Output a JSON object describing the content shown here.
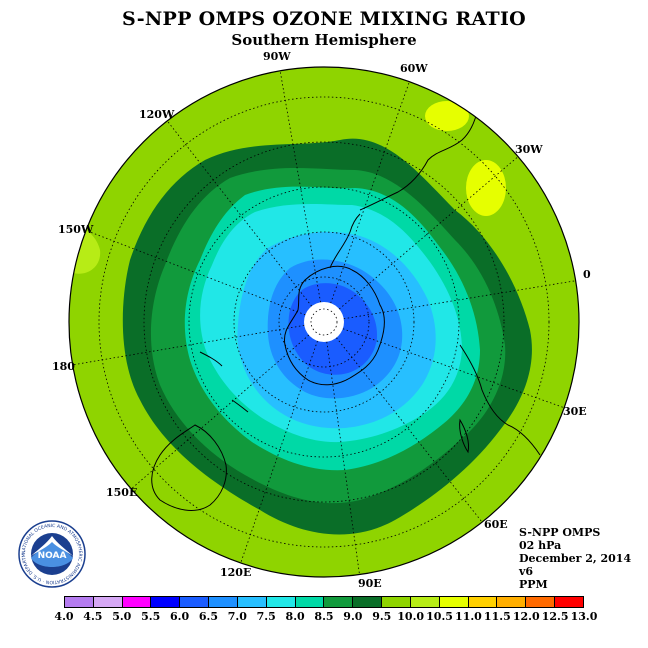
{
  "header": {
    "title": "S-NPP OMPS OZONE MIXING RATIO",
    "subtitle": "Southern Hemisphere"
  },
  "map": {
    "projection": "south polar stereographic",
    "longitude_labels": [
      "90W",
      "60W",
      "30W",
      "0",
      "30E",
      "60E",
      "90E",
      "120E",
      "150E",
      "180",
      "150W",
      "120W"
    ]
  },
  "info": {
    "product": "S-NPP OMPS",
    "level": "02 hPa",
    "date": "December 2, 2014",
    "version": "v6",
    "units": "PPM"
  },
  "colorbar": {
    "ticks": [
      "4.0",
      "4.5",
      "5.0",
      "5.5",
      "6.0",
      "6.5",
      "7.0",
      "7.5",
      "8.0",
      "8.5",
      "9.0",
      "9.5",
      "10.0",
      "10.5",
      "11.0",
      "11.5",
      "12.0",
      "12.5",
      "13.0"
    ],
    "colors": [
      "#b57cf0",
      "#d6a8f5",
      "#ff00ff",
      "#0000ff",
      "#1a5cff",
      "#1e90ff",
      "#27bfff",
      "#21e7e7",
      "#00d9a6",
      "#119a3c",
      "#0a6e28",
      "#8fd400",
      "#b7ec16",
      "#e6ff00",
      "#ffd000",
      "#ffae00",
      "#ff6a00",
      "#ff0000",
      "#8b5a2b"
    ]
  },
  "logo": {
    "text": "NOAA",
    "ring_text": "NATIONAL OCEANIC AND ATMOSPHERIC ADMINISTRATION · U.S. DEPARTMENT OF COMMERCE"
  }
}
